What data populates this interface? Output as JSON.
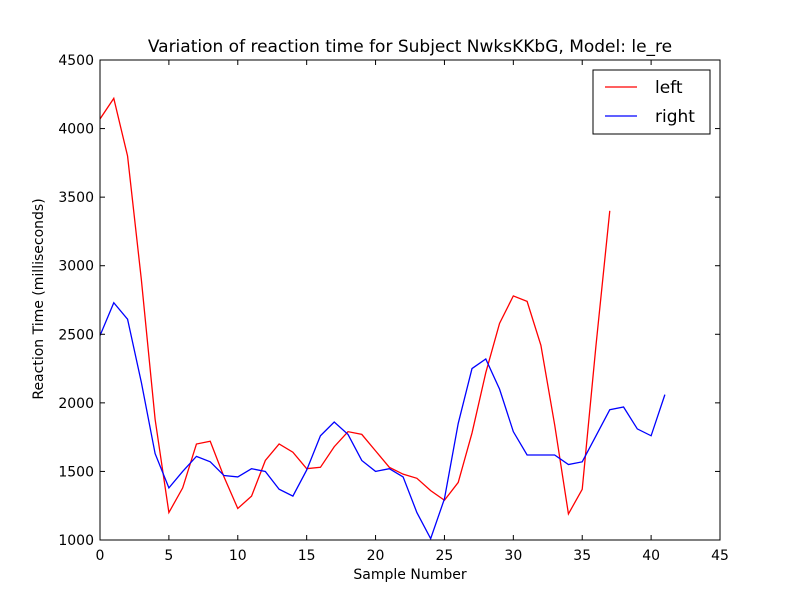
{
  "chart_data": {
    "type": "line",
    "title": "Variation of reaction time for Subject NwksKKbG, Model: le_re",
    "xlabel": "Sample Number",
    "ylabel": "Reaction Time (milliseconds)",
    "xlim": [
      0,
      45
    ],
    "ylim": [
      1000,
      4500
    ],
    "xticks": [
      0,
      5,
      10,
      15,
      20,
      25,
      30,
      35,
      40,
      45
    ],
    "yticks": [
      1000,
      1500,
      2000,
      2500,
      3000,
      3500,
      4000,
      4500
    ],
    "grid": false,
    "legend_position": "top-right",
    "series": [
      {
        "name": "left",
        "color": "#ff0000",
        "x": [
          0,
          1,
          2,
          3,
          4,
          5,
          6,
          7,
          8,
          9,
          10,
          11,
          12,
          13,
          14,
          15,
          16,
          17,
          18,
          19,
          20,
          21,
          22,
          23,
          24,
          25,
          26,
          27,
          28,
          29,
          30,
          31,
          32,
          33,
          34,
          35,
          36,
          37
        ],
        "values": [
          4070,
          4220,
          3800,
          2900,
          1880,
          1200,
          1380,
          1700,
          1720,
          1460,
          1230,
          1320,
          1580,
          1700,
          1640,
          1520,
          1530,
          1680,
          1790,
          1770,
          1650,
          1530,
          1480,
          1450,
          1360,
          1290,
          1420,
          1780,
          2220,
          2580,
          2780,
          2740,
          2420,
          1840,
          1190,
          1370,
          2420,
          3400
        ]
      },
      {
        "name": "right",
        "color": "#0000ff",
        "x": [
          0,
          1,
          2,
          3,
          4,
          5,
          6,
          7,
          8,
          9,
          10,
          11,
          12,
          13,
          14,
          15,
          16,
          17,
          18,
          19,
          20,
          21,
          22,
          23,
          24,
          25,
          26,
          27,
          28,
          29,
          30,
          31,
          32,
          33,
          34,
          35,
          36,
          37,
          38,
          39,
          40,
          41
        ],
        "values": [
          2490,
          2730,
          2610,
          2150,
          1630,
          1380,
          1500,
          1610,
          1570,
          1470,
          1460,
          1520,
          1500,
          1370,
          1320,
          1510,
          1760,
          1860,
          1770,
          1580,
          1500,
          1520,
          1460,
          1200,
          1010,
          1300,
          1850,
          2250,
          2320,
          2100,
          1790,
          1620,
          1620,
          1620,
          1550,
          1570,
          1760,
          1950,
          1970,
          1810,
          1760,
          2060
        ]
      }
    ]
  }
}
